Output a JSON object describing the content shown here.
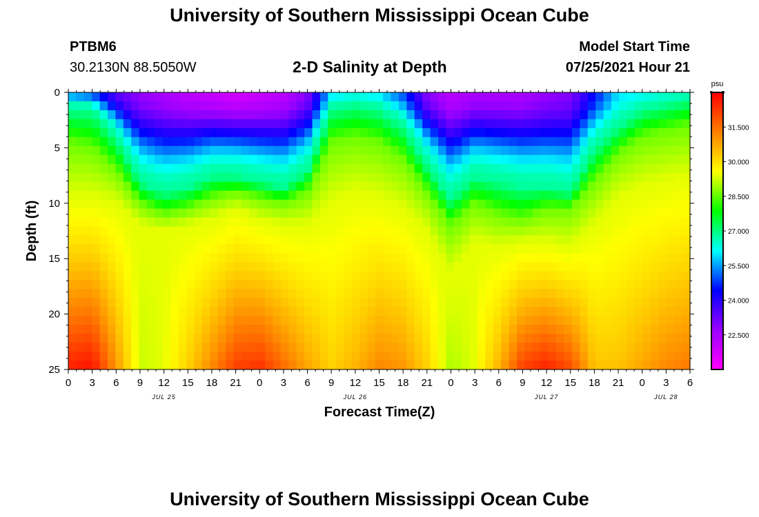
{
  "header": {
    "title": "University of Southern Mississippi Ocean Cube",
    "station": "PTBM6",
    "coords": "30.2130N  88.5050W",
    "subtitle": "2-D Salinity at Depth",
    "model_label": "Model Start Time",
    "model_time": "07/25/2021 Hour 21"
  },
  "footer": {
    "title": "University of Southern Mississippi Ocean Cube"
  },
  "chart_data": {
    "type": "heatmap",
    "title": "2-D Salinity at Depth",
    "xlabel": "Forecast Time(Z)",
    "ylabel": "Depth (ft)",
    "x_tick_labels": [
      "0",
      "3",
      "6",
      "9",
      "12",
      "15",
      "18",
      "21",
      "0",
      "3",
      "6",
      "9",
      "12",
      "15",
      "18",
      "21",
      "0",
      "3",
      "6",
      "9",
      "12",
      "15",
      "18",
      "21",
      "0",
      "3",
      "6"
    ],
    "date_labels": [
      {
        "label": "JUL 25",
        "hour": 12
      },
      {
        "label": "JUL 26",
        "hour": 36
      },
      {
        "label": "JUL 27",
        "hour": 60
      },
      {
        "label": "JUL 28",
        "hour": 75
      }
    ],
    "x_range_hours": [
      0,
      78
    ],
    "y_ticks": [
      0,
      5,
      10,
      15,
      20,
      25
    ],
    "ylim": [
      25,
      0
    ],
    "colorbar": {
      "unit": "psu",
      "tick_labels": [
        "31.500",
        "30.000",
        "28.500",
        "27.000",
        "25.500",
        "24.000",
        "22.500"
      ],
      "range": [
        21.0,
        33.0
      ],
      "colors": [
        "#ff00ff",
        "#9b00ff",
        "#0000ff",
        "#00ffff",
        "#00ff00",
        "#ffff00",
        "#ff8000",
        "#ff0000"
      ]
    },
    "profiles": [
      {
        "hour": 0,
        "z1": 1.5,
        "z2": 4.5,
        "z3": 9.5,
        "top": 25.5,
        "bottom": 32.6
      },
      {
        "hour": 3,
        "z1": 1.5,
        "z2": 5.0,
        "z3": 9.5,
        "top": 25.0,
        "bottom": 32.8
      },
      {
        "hour": 6,
        "z1": 4.0,
        "z2": 7.0,
        "z3": 10.0,
        "top": 23.5,
        "bottom": 31.0
      },
      {
        "hour": 9,
        "z1": 8.0,
        "z2": 10.0,
        "z3": 12.0,
        "top": 22.8,
        "bottom": 29.2
      },
      {
        "hour": 12,
        "z1": 9.0,
        "z2": 11.0,
        "z3": 12.5,
        "top": 22.5,
        "bottom": 29.4
      },
      {
        "hour": 15,
        "z1": 8.5,
        "z2": 10.5,
        "z3": 12.0,
        "top": 22.2,
        "bottom": 30.2
      },
      {
        "hour": 18,
        "z1": 7.5,
        "z2": 9.5,
        "z3": 11.5,
        "top": 22.0,
        "bottom": 31.2
      },
      {
        "hour": 21,
        "z1": 7.5,
        "z2": 9.0,
        "z3": 10.5,
        "top": 21.8,
        "bottom": 32.2
      },
      {
        "hour": 24,
        "z1": 8.0,
        "z2": 9.5,
        "z3": 11.5,
        "top": 22.0,
        "bottom": 32.4
      },
      {
        "hour": 27,
        "z1": 8.5,
        "z2": 10.0,
        "z3": 12.0,
        "top": 22.2,
        "bottom": 31.6
      },
      {
        "hour": 30,
        "z1": 7.0,
        "z2": 9.0,
        "z3": 12.0,
        "top": 23.0,
        "bottom": 30.8
      },
      {
        "hour": 33,
        "z1": 1.5,
        "z2": 4.5,
        "z3": 10.0,
        "top": 26.0,
        "bottom": 30.2
      },
      {
        "hour": 36,
        "z1": 1.0,
        "z2": 4.0,
        "z3": 9.0,
        "top": 26.2,
        "bottom": 30.6
      },
      {
        "hour": 39,
        "z1": 1.5,
        "z2": 4.5,
        "z3": 9.5,
        "top": 26.0,
        "bottom": 31.2
      },
      {
        "hour": 42,
        "z1": 3.0,
        "z2": 6.0,
        "z3": 10.5,
        "top": 25.0,
        "bottom": 31.0
      },
      {
        "hour": 45,
        "z1": 6.5,
        "z2": 9.0,
        "z3": 12.5,
        "top": 23.0,
        "bottom": 30.2
      },
      {
        "hour": 48,
        "z1": 9.5,
        "z2": 12.0,
        "z3": 16.5,
        "top": 22.2,
        "bottom": 29.0
      },
      {
        "hour": 51,
        "z1": 7.5,
        "z2": 10.0,
        "z3": 13.5,
        "top": 22.5,
        "bottom": 29.4
      },
      {
        "hour": 54,
        "z1": 8.0,
        "z2": 11.0,
        "z3": 14.0,
        "top": 22.5,
        "bottom": 30.6
      },
      {
        "hour": 57,
        "z1": 8.5,
        "z2": 11.5,
        "z3": 13.5,
        "top": 22.5,
        "bottom": 32.2
      },
      {
        "hour": 60,
        "z1": 8.5,
        "z2": 10.5,
        "z3": 13.5,
        "top": 22.8,
        "bottom": 32.6
      },
      {
        "hour": 63,
        "z1": 9.0,
        "z2": 10.5,
        "z3": 14.0,
        "top": 23.0,
        "bottom": 32.0
      },
      {
        "hour": 66,
        "z1": 5.0,
        "z2": 8.0,
        "z3": 12.0,
        "top": 24.5,
        "bottom": 30.4
      },
      {
        "hour": 69,
        "z1": 3.0,
        "z2": 5.5,
        "z3": 9.5,
        "top": 26.0,
        "bottom": 30.4
      },
      {
        "hour": 72,
        "z1": 1.5,
        "z2": 4.0,
        "z3": 8.5,
        "top": 26.2,
        "bottom": 30.8
      },
      {
        "hour": 75,
        "z1": 1.0,
        "z2": 3.5,
        "z3": 8.0,
        "top": 26.4,
        "bottom": 31.2
      },
      {
        "hour": 78,
        "z1": 0.5,
        "z2": 3.0,
        "z3": 7.5,
        "top": 26.4,
        "bottom": 31.4
      }
    ]
  }
}
